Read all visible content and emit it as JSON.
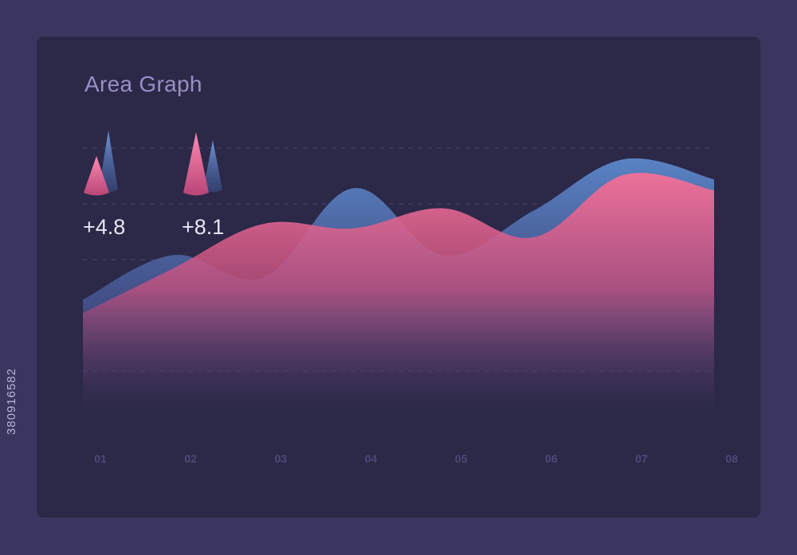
{
  "title": "Area Graph",
  "stats": [
    {
      "label": "+4.8",
      "cone_colors": [
        "#e86c95",
        "#5a7fc0"
      ]
    },
    {
      "label": "+8.1",
      "cone_colors": [
        "#e86c95",
        "#5a7fc0"
      ]
    }
  ],
  "side_id": "380916582",
  "chart_data": {
    "type": "area",
    "categories": [
      "01",
      "02",
      "03",
      "04",
      "05",
      "06",
      "07",
      "08"
    ],
    "ylim": [
      0,
      100
    ],
    "grid": true,
    "series": [
      {
        "values": [
          32,
          52,
          42,
          82,
          52,
          72,
          95,
          86
        ],
        "color": "#4f79bb"
      },
      {
        "values": [
          26,
          46,
          66,
          64,
          73,
          60,
          88,
          81
        ],
        "color": "#ea6a93"
      }
    ]
  }
}
